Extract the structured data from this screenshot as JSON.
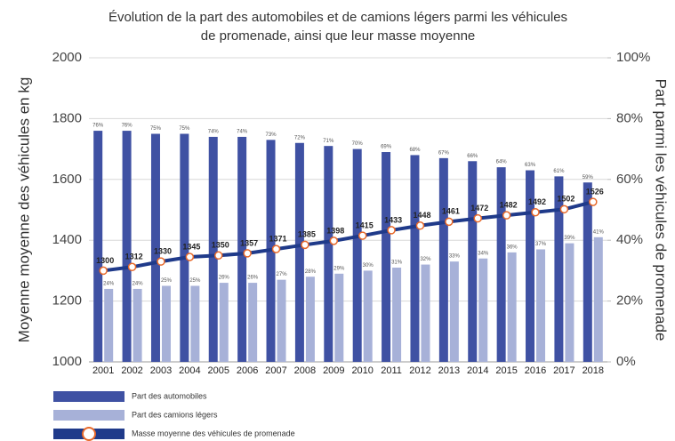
{
  "chart_data": {
    "type": "bar-line",
    "title": [
      "Évolution de la part des automobiles et de camions légers parmi les véhicules",
      "de promenade, ainsi que leur masse moyenne"
    ],
    "y_label": "Moyenne moyenne des véhicules en kg",
    "y2_label": "Part parmi les véhicules de promenade",
    "categories": [
      "2001",
      "2002",
      "2003",
      "2004",
      "2005",
      "2006",
      "2007",
      "2008",
      "2009",
      "2010",
      "2011",
      "2012",
      "2013",
      "2014",
      "2015",
      "2016",
      "2017",
      "2018"
    ],
    "ylim": [
      1000,
      2000
    ],
    "yticks": [
      1000,
      1200,
      1400,
      1600,
      1800,
      2000
    ],
    "y2lim": [
      0,
      100
    ],
    "y2ticks": [
      {
        "value": 0,
        "label": "0%"
      },
      {
        "value": 20,
        "label": "20%"
      },
      {
        "value": 40,
        "label": "40%"
      },
      {
        "value": 60,
        "label": "60%"
      },
      {
        "value": 80,
        "label": "80%"
      },
      {
        "value": 100,
        "label": "100%"
      }
    ],
    "grid": true,
    "series": [
      {
        "name": "Part des automobiles",
        "type": "bar",
        "axis": "y2",
        "color": "#3f51a3",
        "values": [
          76,
          76,
          75,
          75,
          74,
          74,
          73,
          72,
          71,
          70,
          69,
          68,
          67,
          66,
          64,
          63,
          61,
          59
        ],
        "value_labels": [
          "76%",
          "76%",
          "75%",
          "75%",
          "74%",
          "74%",
          "73%",
          "72%",
          "71%",
          "70%",
          "69%",
          "68%",
          "67%",
          "66%",
          "64%",
          "63%",
          "61%",
          "59%"
        ]
      },
      {
        "name": "Part des camions légers",
        "type": "bar",
        "axis": "y2",
        "color": "#a7b1d8",
        "values": [
          24,
          24,
          25,
          25,
          26,
          26,
          27,
          28,
          29,
          30,
          31,
          32,
          33,
          34,
          36,
          37,
          39,
          41
        ],
        "value_labels": [
          "24%",
          "24%",
          "25%",
          "25%",
          "26%",
          "26%",
          "27%",
          "28%",
          "29%",
          "30%",
          "31%",
          "32%",
          "33%",
          "34%",
          "36%",
          "37%",
          "39%",
          "41%"
        ]
      },
      {
        "name": "Masse moyenne des véhicules de promenade",
        "type": "line",
        "color": "#1f3a8a",
        "marker_color": "#e8692a",
        "values": [
          1300,
          1312,
          1330,
          1345,
          1350,
          1357,
          1371,
          1385,
          1398,
          1415,
          1433,
          1448,
          1461,
          1472,
          1482,
          1492,
          1502,
          1526
        ]
      }
    ]
  }
}
